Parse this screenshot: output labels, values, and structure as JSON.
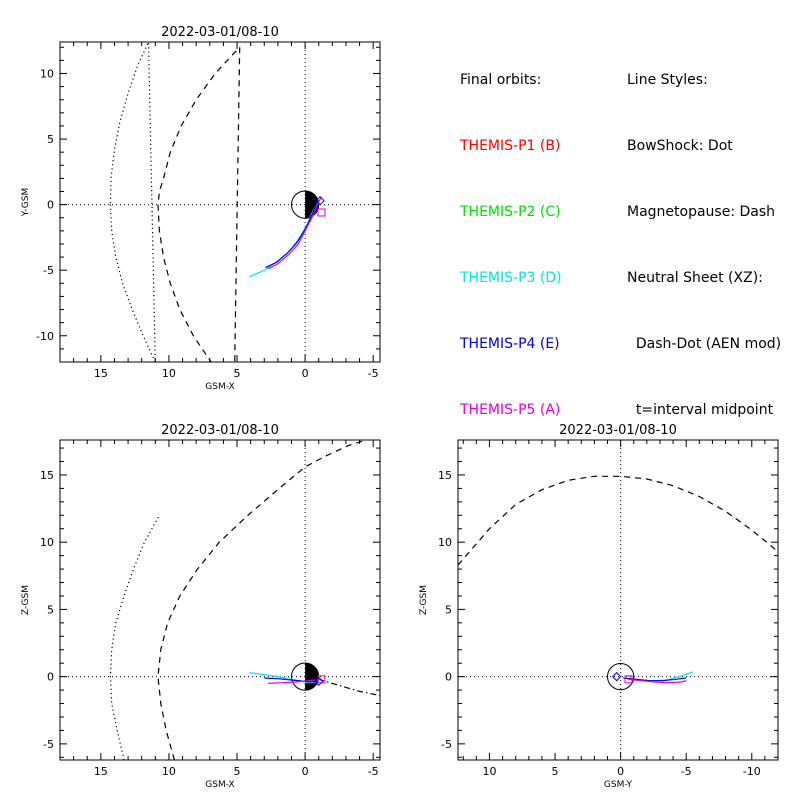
{
  "chart_data": [
    {
      "type": "line",
      "title": "2022-03-01/08-10",
      "xlabel": "GSM-X",
      "ylabel": "Y-GSM",
      "xlim": [
        18,
        -5.5
      ],
      "ylim": [
        -12,
        12.4
      ],
      "xticks": [
        15,
        10,
        5,
        0,
        -5
      ],
      "yticks": [
        -10,
        -5,
        0,
        5,
        10
      ],
      "series": [
        {
          "name": "BowShock",
          "style": "dot",
          "color": "#000000",
          "x": [
            14.3,
            14.2,
            13.9,
            13.4,
            12.7,
            11.9,
            11.0,
            11.5,
            12.3,
            13.0,
            13.6,
            14.0,
            14.25,
            14.3
          ],
          "y": [
            0,
            -2,
            -4,
            -6,
            -8,
            -10,
            -12,
            12.4,
            10.6,
            8.5,
            6.3,
            4.2,
            2.1,
            0
          ]
        },
        {
          "name": "Magnetopause",
          "style": "dash",
          "color": "#000000",
          "x": [
            10.8,
            10.7,
            10.4,
            9.9,
            9.2,
            8.2,
            6.9,
            5.2,
            4.8,
            6.6,
            8.0,
            9.1,
            9.9,
            10.4,
            10.7,
            10.8
          ],
          "y": [
            0,
            -2,
            -4,
            -6,
            -8,
            -10,
            -12,
            -14,
            12,
            10,
            8,
            6,
            4,
            2,
            1,
            0
          ]
        },
        {
          "name": "THEMIS-P3 (D)",
          "color": "#00e5e5",
          "x": [
            4.1,
            3.0,
            2.0,
            1.1,
            0.4,
            -0.2,
            -0.7,
            -1.0
          ],
          "y": [
            -5.5,
            -5.0,
            -4.3,
            -3.5,
            -2.5,
            -1.4,
            -0.2,
            0.2
          ]
        },
        {
          "name": "THEMIS-P4 (E)",
          "color": "#0000d0",
          "x": [
            2.9,
            2.1,
            1.3,
            0.6,
            0.0,
            -0.5,
            -0.9
          ],
          "y": [
            -4.8,
            -4.4,
            -3.7,
            -2.9,
            -1.9,
            -0.8,
            0.3
          ]
        },
        {
          "name": "THEMIS-P5 (A)",
          "color": "#e000e0",
          "x": [
            2.7,
            2.0,
            1.2,
            0.5,
            0.0,
            -0.5,
            -0.9,
            -1.2
          ],
          "y": [
            -4.9,
            -4.5,
            -3.8,
            -3.0,
            -2.0,
            -1.0,
            0.0,
            0.6
          ]
        }
      ],
      "markers": [
        {
          "name": "THEMIS-P5 (A)",
          "shape": "square",
          "color": "#e000e0",
          "x": -1.2,
          "y": -0.6
        },
        {
          "name": "THEMIS-P4 (E)",
          "shape": "diamond",
          "color": "#0000d0",
          "x": -1.1,
          "y": 0.3
        }
      ]
    },
    {
      "type": "line",
      "title": "2022-03-01/08-10",
      "xlabel": "GSM-X",
      "ylabel": "Z-GSM",
      "xlim": [
        18,
        -5.5
      ],
      "ylim": [
        -6.2,
        17.6
      ],
      "xticks": [
        15,
        10,
        5,
        0,
        -5
      ],
      "yticks": [
        -5,
        0,
        5,
        10,
        15
      ],
      "series": [
        {
          "name": "BowShock",
          "style": "dot",
          "color": "#000000",
          "x": [
            13.3,
            13.8,
            14.2,
            14.3,
            14.2,
            13.9,
            13.3,
            12.6,
            11.8,
            10.7
          ],
          "y": [
            -6.2,
            -4,
            -2,
            0,
            2,
            4,
            6,
            8,
            10,
            12
          ]
        },
        {
          "name": "Magnetopause",
          "style": "dash",
          "color": "#000000",
          "x": [
            9.6,
            10.2,
            10.6,
            10.8,
            10.6,
            10.1,
            9.2,
            7.9,
            6.3,
            4.2,
            1.9,
            0.0,
            -1.5,
            -3.2,
            -4.5
          ],
          "y": [
            -6.2,
            -4,
            -2,
            0,
            2,
            4,
            6,
            8,
            10,
            12,
            14,
            15.6,
            16.4,
            17.2,
            17.6
          ]
        },
        {
          "name": "Neutral Sheet",
          "style": "dashdot",
          "color": "#000000",
          "x": [
            0,
            -1,
            -2,
            -3,
            -4,
            -5,
            -5.5
          ],
          "y": [
            0,
            -0.2,
            -0.5,
            -0.8,
            -1.1,
            -1.3,
            -1.4
          ]
        },
        {
          "name": "THEMIS-P3 (D)",
          "color": "#00e5e5",
          "x": [
            4.1,
            3.0,
            2.0,
            1.0,
            0.0,
            -0.9
          ],
          "y": [
            0.3,
            0.15,
            0.0,
            -0.2,
            -0.4,
            -0.45
          ]
        },
        {
          "name": "THEMIS-P4 (E)",
          "color": "#0000d0",
          "x": [
            3.0,
            2.0,
            1.0,
            0.0,
            -1.0
          ],
          "y": [
            -0.1,
            -0.15,
            -0.25,
            -0.35,
            -0.4
          ]
        },
        {
          "name": "THEMIS-P5 (A)",
          "color": "#e000e0",
          "x": [
            2.7,
            1.7,
            0.7,
            -0.3,
            -1.2
          ],
          "y": [
            -0.5,
            -0.45,
            -0.4,
            -0.3,
            -0.2
          ]
        }
      ],
      "markers": [
        {
          "name": "THEMIS-P5 (A)",
          "shape": "square",
          "color": "#e000e0",
          "x": -1.2,
          "y": -0.2
        },
        {
          "name": "THEMIS-P4 (E)",
          "shape": "diamond",
          "color": "#0000d0",
          "x": -1.0,
          "y": -0.35
        }
      ]
    },
    {
      "type": "line",
      "title": "2022-03-01/08-10",
      "xlabel": "GSM-Y",
      "ylabel": "Z-GSM",
      "xlim": [
        12.4,
        -12
      ],
      "ylim": [
        -6.2,
        17.6
      ],
      "xticks": [
        10,
        5,
        0,
        -5,
        -10
      ],
      "yticks": [
        -5,
        0,
        5,
        10,
        15
      ],
      "series": [
        {
          "name": "Magnetopause",
          "style": "dash",
          "color": "#000000",
          "x": [
            12.4,
            10,
            8,
            6,
            4,
            2,
            0,
            -2,
            -4,
            -6,
            -8,
            -10,
            -12
          ],
          "y": [
            8.3,
            11.0,
            12.8,
            13.9,
            14.6,
            14.9,
            14.9,
            14.7,
            14.2,
            13.4,
            12.3,
            10.9,
            9.3
          ]
        },
        {
          "name": "THEMIS-P3 (D)",
          "color": "#00e5e5",
          "x": [
            -0.5,
            -1.5,
            -2.5,
            -3.5,
            -4.5,
            -5.5
          ],
          "y": [
            -0.15,
            -0.25,
            -0.3,
            -0.25,
            0.0,
            0.35
          ]
        },
        {
          "name": "THEMIS-P4 (E)",
          "color": "#0000d0",
          "x": [
            -0.2,
            -1.2,
            -2.2,
            -3.2,
            -4.2,
            -5.0
          ],
          "y": [
            -0.1,
            -0.2,
            -0.3,
            -0.3,
            -0.2,
            -0.1
          ]
        },
        {
          "name": "THEMIS-P5 (A)",
          "color": "#e000e0",
          "x": [
            -0.6,
            -1.6,
            -2.6,
            -3.6,
            -4.6,
            -5.0
          ],
          "y": [
            -0.2,
            -0.3,
            -0.4,
            -0.45,
            -0.4,
            -0.3
          ]
        }
      ],
      "markers": [
        {
          "name": "THEMIS-P5 (A)",
          "shape": "square",
          "color": "#e000e0",
          "x": -0.6,
          "y": -0.2
        },
        {
          "name": "THEMIS-P4 (E)",
          "shape": "diamond",
          "color": "#0000d0",
          "x": 0.3,
          "y": 0.0
        }
      ]
    }
  ],
  "legend": {
    "orbits_title": "Final orbits:",
    "orbits": [
      {
        "label": "THEMIS-P1 (B)",
        "color": "#ff0000"
      },
      {
        "label": "THEMIS-P2 (C)",
        "color": "#00e000"
      },
      {
        "label": "THEMIS-P3 (D)",
        "color": "#00e5e5"
      },
      {
        "label": "THEMIS-P4 (E)",
        "color": "#0000d0"
      },
      {
        "label": "THEMIS-P5 (A)",
        "color": "#e000e0"
      }
    ],
    "styles_title": "Line Styles:",
    "styles": [
      "BowShock: Dot",
      "Magnetopause: Dash",
      "Neutral Sheet (XZ):",
      "  Dash-Dot (AEN mod)",
      "  t=interval midpoint"
    ]
  }
}
